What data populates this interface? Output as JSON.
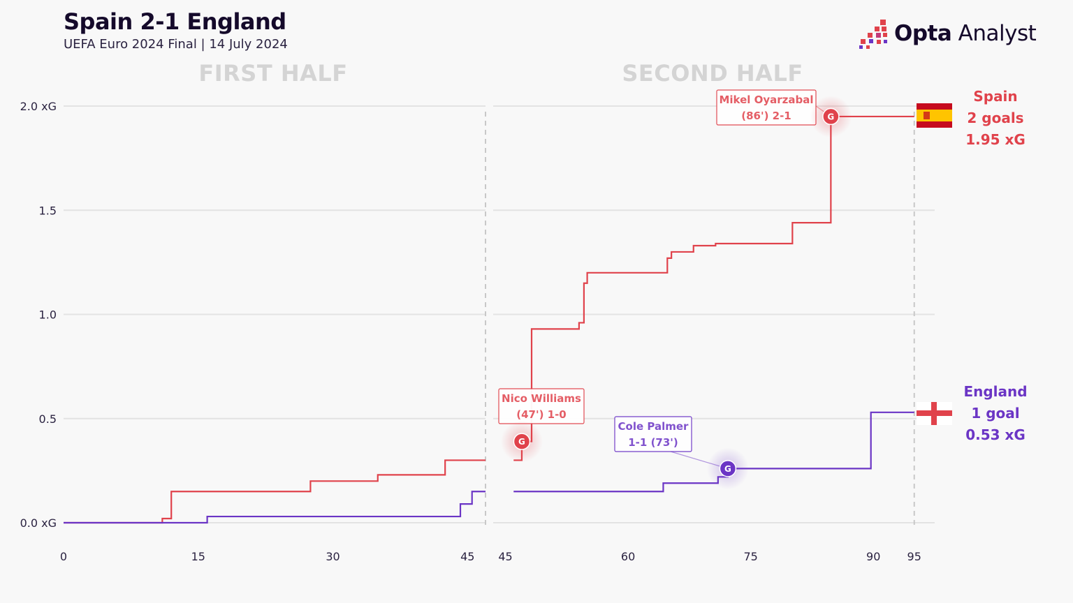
{
  "header": {
    "title": "Spain 2-1 England",
    "subtitle": "UEFA Euro 2024 Final | 14 July 2024",
    "brand_bold": "Opta",
    "brand_light": " Analyst"
  },
  "colors": {
    "spain": "#e0424b",
    "england": "#6b35c5",
    "grid": "#e3e3e3",
    "half_label": "#d4d4d4",
    "text": "#150a2b"
  },
  "chart_data": {
    "type": "line",
    "step": true,
    "title": "Spain 2-1 England",
    "subtitle": "UEFA Euro 2024 Final | 14 July 2024",
    "xlabel": "",
    "ylabel": "",
    "ylim": [
      0,
      2.0
    ],
    "yticks": [
      0,
      0.5,
      1.0,
      1.5,
      2.0
    ],
    "ytick_labels": [
      "0.0 xG",
      "0.5",
      "1.0",
      "1.5",
      "2.0 xG"
    ],
    "grid": true,
    "panels": [
      {
        "label": "FIRST HALF",
        "xlim": [
          0,
          47
        ],
        "xticks": [
          0,
          15,
          30,
          45
        ],
        "xtick_labels": [
          "0",
          "15",
          "30",
          "45"
        ],
        "period_end": 47
      },
      {
        "label": "SECOND HALF",
        "xlim": [
          43.5,
          97.5
        ],
        "xticks": [
          45,
          60,
          75,
          90,
          95
        ],
        "xtick_labels": [
          "45",
          "60",
          "75",
          "90",
          "95"
        ],
        "period_end": 95
      }
    ],
    "series": [
      {
        "name": "Spain",
        "first_half": [
          [
            0,
            0
          ],
          [
            11,
            0.02
          ],
          [
            12,
            0.15
          ],
          [
            27.5,
            0.2
          ],
          [
            35,
            0.23
          ],
          [
            42.5,
            0.3
          ],
          [
            47,
            0.3
          ]
        ],
        "second_half": [
          [
            46,
            0.3
          ],
          [
            47,
            0.39
          ],
          [
            48.2,
            0.93
          ],
          [
            54,
            0.96
          ],
          [
            54.6,
            1.15
          ],
          [
            55,
            1.2
          ],
          [
            64.8,
            1.27
          ],
          [
            65.3,
            1.3
          ],
          [
            68,
            1.33
          ],
          [
            70.7,
            1.34
          ],
          [
            80.1,
            1.44
          ],
          [
            84.8,
            1.95
          ],
          [
            95,
            1.95
          ]
        ],
        "goals": "2 goals",
        "xg": "1.95 xG"
      },
      {
        "name": "England",
        "first_half": [
          [
            0,
            0
          ],
          [
            16,
            0.03
          ],
          [
            44.2,
            0.09
          ],
          [
            45.5,
            0.15
          ],
          [
            47,
            0.15
          ]
        ],
        "second_half": [
          [
            46,
            0.15
          ],
          [
            64.3,
            0.19
          ],
          [
            71,
            0.22
          ],
          [
            72.2,
            0.26
          ],
          [
            89.7,
            0.53
          ],
          [
            95,
            0.53
          ]
        ],
        "goals": "1 goal",
        "xg": "0.53 xG"
      }
    ],
    "annotations": [
      {
        "team": "Spain",
        "marker": "G",
        "x": 47,
        "y": 0.39,
        "line1": "Nico Williams",
        "line2": "(47') 1-0"
      },
      {
        "team": "England",
        "marker": "G",
        "x": 72.2,
        "y": 0.26,
        "line1": "Cole Palmer",
        "line2": "1-1 (73')"
      },
      {
        "team": "Spain",
        "marker": "G",
        "x": 84.8,
        "y": 1.95,
        "line1": "Mikel Oyarzabal",
        "line2": "(86') 2-1"
      }
    ]
  }
}
